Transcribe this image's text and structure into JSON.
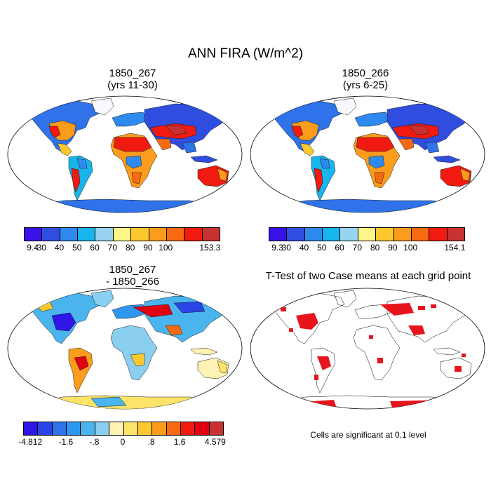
{
  "title": "ANN FIRA (W/m^2)",
  "panels": [
    {
      "title_line1": "1850_267",
      "title_line2": "(yrs 11-30)"
    },
    {
      "title_line1": "1850_266",
      "title_line2": "(yrs 6-25)"
    },
    {
      "title_line1": "1850_267",
      "title_line2": "- 1850_266"
    },
    {
      "title_line1": "T-Test of two Case means at each grid point",
      "note": "Cells are significant at 0.1 level"
    }
  ],
  "colorbars": [
    {
      "labels": [
        "9.4",
        "30",
        "40",
        "50",
        "60",
        "70",
        "80",
        "90",
        "100",
        "153.3"
      ],
      "colors": [
        "#3a12e8",
        "#2f4ee0",
        "#2f8af0",
        "#18b4ec",
        "#98d4f0",
        "#fff68a",
        "#fdc82e",
        "#fb9c1c",
        "#f86a10",
        "#f01a10",
        "#c83232"
      ]
    },
    {
      "labels": [
        "9.3",
        "30",
        "40",
        "50",
        "60",
        "70",
        "80",
        "90",
        "100",
        "154.1"
      ],
      "colors": [
        "#3a12e8",
        "#2f4ee0",
        "#2f8af0",
        "#18b4ec",
        "#98d4f0",
        "#fff68a",
        "#fdc82e",
        "#fb9c1c",
        "#f86a10",
        "#f01a10",
        "#c83232"
      ]
    },
    {
      "labels": [
        "-4.812",
        "-1.6",
        "-.8",
        "0",
        ".8",
        "1.6",
        "4.579"
      ],
      "colors": [
        "#2e16e6",
        "#2a44e6",
        "#2f72ea",
        "#2e98ee",
        "#4ab4ee",
        "#8acef0",
        "#fdf2b4",
        "#fde36a",
        "#fdc82e",
        "#fb9c1c",
        "#f86a10",
        "#f01a10",
        "#e00010",
        "#c83232"
      ]
    }
  ],
  "significance_color": "#e8141c",
  "land_outline_color": "#000000"
}
